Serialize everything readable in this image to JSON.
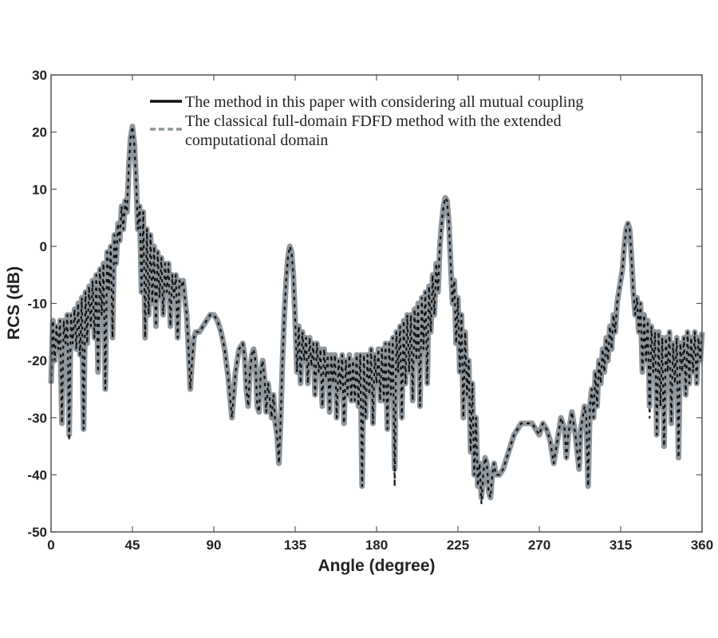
{
  "chart_data": {
    "type": "line",
    "title": "",
    "xlabel": "Angle (degree)",
    "ylabel": "RCS (dB)",
    "xlim": [
      0,
      360
    ],
    "ylim": [
      -50,
      30
    ],
    "xticks": [
      0,
      45,
      90,
      135,
      180,
      225,
      270,
      315,
      360
    ],
    "yticks": [
      30,
      20,
      10,
      0,
      -10,
      -20,
      -30,
      -40,
      -50
    ],
    "grid": false,
    "legend_position": "top-right",
    "x": [
      0,
      1,
      2,
      3,
      4,
      5,
      6,
      7,
      8,
      9,
      10,
      11,
      12,
      13,
      14,
      15,
      16,
      17,
      18,
      19,
      20,
      21,
      22,
      23,
      24,
      25,
      26,
      27,
      28,
      29,
      30,
      31,
      32,
      33,
      34,
      35,
      36,
      37,
      38,
      39,
      40,
      41,
      42,
      43,
      44,
      45,
      46,
      47,
      48,
      49,
      50,
      51,
      52,
      53,
      54,
      55,
      56,
      57,
      58,
      59,
      60,
      61,
      62,
      63,
      64,
      65,
      66,
      67,
      68,
      69,
      70,
      71,
      72,
      73,
      74,
      75,
      76,
      77,
      78,
      79,
      80,
      82,
      84,
      86,
      88,
      90,
      92,
      94,
      96,
      98,
      100,
      102,
      104,
      106,
      107,
      108,
      109,
      110,
      111,
      112,
      113,
      114,
      115,
      116,
      117,
      118,
      119,
      120,
      121,
      122,
      123,
      124,
      125,
      126,
      127,
      128,
      129,
      130,
      131,
      132,
      133,
      134,
      135,
      136,
      137,
      138,
      139,
      140,
      141,
      142,
      143,
      144,
      145,
      146,
      147,
      148,
      149,
      150,
      151,
      152,
      153,
      154,
      155,
      156,
      157,
      158,
      159,
      160,
      161,
      162,
      163,
      164,
      165,
      166,
      167,
      168,
      169,
      170,
      171,
      172,
      173,
      174,
      175,
      176,
      177,
      178,
      179,
      180,
      181,
      182,
      183,
      184,
      185,
      186,
      187,
      188,
      189,
      190,
      191,
      192,
      193,
      194,
      195,
      196,
      197,
      198,
      199,
      200,
      201,
      202,
      203,
      204,
      205,
      206,
      207,
      208,
      209,
      210,
      211,
      212,
      213,
      214,
      215,
      216,
      217,
      218,
      219,
      220,
      221,
      222,
      223,
      224,
      225,
      226,
      227,
      228,
      229,
      230,
      231,
      232,
      233,
      234,
      235,
      236,
      237,
      238,
      239,
      240,
      241,
      242,
      243,
      244,
      245,
      246,
      248,
      250,
      252,
      254,
      256,
      258,
      260,
      262,
      264,
      266,
      268,
      270,
      272,
      274,
      276,
      278,
      280,
      282,
      284,
      285,
      286,
      288,
      290,
      292,
      293,
      295,
      296,
      297,
      298,
      299,
      300,
      301,
      302,
      303,
      304,
      305,
      306,
      307,
      308,
      309,
      310,
      311,
      312,
      313,
      314,
      315,
      316,
      317,
      318,
      319,
      320,
      321,
      322,
      323,
      324,
      325,
      326,
      327,
      328,
      329,
      330,
      331,
      332,
      333,
      334,
      335,
      336,
      337,
      338,
      339,
      340,
      341,
      342,
      343,
      344,
      345,
      346,
      347,
      348,
      349,
      350,
      351,
      352,
      353,
      354,
      355,
      356,
      357,
      358,
      359,
      360
    ],
    "series": [
      {
        "name": "The method in this paper with considering all mutual coupling",
        "style": "solid",
        "color": "#111111",
        "values": [
          -24,
          -13,
          -20,
          -14,
          -18,
          -13,
          -31,
          -13,
          -17,
          -12,
          -34,
          -12,
          -17,
          -11,
          -18,
          -10,
          -19,
          -9,
          -32,
          -8,
          -17,
          -7,
          -14,
          -6,
          -16,
          -5,
          -22,
          -4,
          -12,
          -3,
          -25,
          -1,
          -8,
          0,
          -16,
          2,
          -3,
          4,
          1,
          7,
          3,
          8,
          6,
          14,
          19,
          21,
          18,
          12,
          3,
          7,
          -8,
          6,
          -16,
          3,
          -12,
          2,
          -10,
          0,
          -14,
          -1,
          -9,
          -2,
          -12,
          -3,
          -8,
          -3,
          -14,
          -5,
          -9,
          -5,
          -16,
          -6,
          -7,
          -6,
          -9,
          -12,
          -18,
          -25,
          -20,
          -16,
          -15,
          -15,
          -14,
          -13,
          -12,
          -12,
          -13,
          -15,
          -18,
          -23,
          -30,
          -22,
          -18,
          -17,
          -19,
          -25,
          -28,
          -22,
          -19,
          -18,
          -20,
          -28,
          -29,
          -22,
          -20,
          -23,
          -29,
          -24,
          -27,
          -30,
          -26,
          -31,
          -33,
          -38,
          -30,
          -20,
          -12,
          -6,
          -2,
          0,
          -1,
          -5,
          -13,
          -22,
          -14,
          -24,
          -15,
          -20,
          -16,
          -24,
          -16,
          -21,
          -17,
          -26,
          -17,
          -22,
          -18,
          -28,
          -18,
          -23,
          -19,
          -29,
          -19,
          -24,
          -19,
          -30,
          -20,
          -25,
          -19,
          -31,
          -20,
          -26,
          -19,
          -27,
          -20,
          -27,
          -19,
          -28,
          -19,
          -42,
          -19,
          -30,
          -19,
          -26,
          -18,
          -31,
          -19,
          -24,
          -18,
          -27,
          -18,
          -27,
          -17,
          -32,
          -17,
          -26,
          -16,
          -42,
          -15,
          -22,
          -14,
          -30,
          -13,
          -24,
          -12,
          -22,
          -12,
          -27,
          -11,
          -20,
          -10,
          -28,
          -9,
          -18,
          -8,
          -24,
          -7,
          -15,
          -5,
          -12,
          -3,
          -8,
          0,
          4,
          7,
          8.5,
          8,
          4,
          -3,
          -10,
          -6,
          -17,
          -9,
          -22,
          -12,
          -30,
          -15,
          -26,
          -20,
          -36,
          -24,
          -40,
          -30,
          -42,
          -38,
          -45,
          -40,
          -37,
          -38,
          -43,
          -44,
          -40,
          -38,
          -40,
          -40,
          -39,
          -37,
          -35,
          -33,
          -32,
          -31,
          -31,
          -31,
          -31,
          -32,
          -33,
          -31,
          -32,
          -34,
          -38,
          -34,
          -30,
          -32,
          -37,
          -33,
          -29,
          -33,
          -39,
          -32,
          -28,
          -30,
          -42,
          -28,
          -25,
          -30,
          -22,
          -28,
          -20,
          -24,
          -18,
          -22,
          -16,
          -20,
          -14,
          -18,
          -12,
          -15,
          -10,
          -8,
          -6,
          -4,
          0,
          3,
          4,
          3,
          -2,
          -8,
          -12,
          -9,
          -15,
          -10,
          -22,
          -12,
          -20,
          -13,
          -30,
          -14,
          -22,
          -15,
          -33,
          -15,
          -28,
          -16,
          -35,
          -16,
          -22,
          -15,
          -31,
          -17,
          -24,
          -16,
          -37,
          -17,
          -22,
          -16,
          -26,
          -15,
          -24,
          -16,
          -22,
          -15,
          -24,
          -16,
          -20,
          -15
        ]
      },
      {
        "name": "The classical full-domain FDFD method with the extended computational domain",
        "style": "dashed",
        "color": "#8e969c",
        "values": [
          -24,
          -13,
          -20,
          -14,
          -18,
          -13,
          -31,
          -13,
          -17,
          -12,
          -33,
          -12,
          -17,
          -11,
          -18,
          -10,
          -19,
          -9,
          -32,
          -8,
          -17,
          -7,
          -14,
          -6,
          -16,
          -5,
          -22,
          -4,
          -12,
          -3,
          -25,
          -1,
          -8,
          0,
          -16,
          2,
          -3,
          4,
          1,
          7,
          3,
          8,
          6,
          14,
          19,
          21,
          18,
          12,
          3,
          7,
          -8,
          6,
          -16,
          3,
          -12,
          2,
          -10,
          0,
          -14,
          -1,
          -9,
          -2,
          -12,
          -3,
          -8,
          -3,
          -14,
          -5,
          -9,
          -5,
          -16,
          -6,
          -7,
          -6,
          -9,
          -12,
          -18,
          -25,
          -20,
          -16,
          -15,
          -15,
          -14,
          -13,
          -12,
          -12,
          -13,
          -15,
          -18,
          -23,
          -30,
          -22,
          -18,
          -17,
          -19,
          -25,
          -28,
          -22,
          -19,
          -18,
          -20,
          -28,
          -29,
          -22,
          -20,
          -23,
          -29,
          -24,
          -27,
          -30,
          -26,
          -31,
          -33,
          -38,
          -30,
          -20,
          -12,
          -6,
          -2,
          0,
          -1,
          -5,
          -13,
          -22,
          -14,
          -24,
          -15,
          -20,
          -16,
          -24,
          -16,
          -21,
          -17,
          -26,
          -17,
          -22,
          -18,
          -28,
          -18,
          -23,
          -19,
          -29,
          -19,
          -24,
          -19,
          -30,
          -20,
          -25,
          -19,
          -31,
          -20,
          -26,
          -19,
          -27,
          -20,
          -27,
          -19,
          -28,
          -19,
          -42,
          -19,
          -30,
          -19,
          -26,
          -18,
          -31,
          -19,
          -24,
          -18,
          -27,
          -18,
          -27,
          -17,
          -32,
          -17,
          -26,
          -16,
          -39,
          -15,
          -22,
          -14,
          -30,
          -13,
          -24,
          -12,
          -22,
          -12,
          -27,
          -11,
          -20,
          -10,
          -28,
          -9,
          -18,
          -8,
          -24,
          -7,
          -15,
          -5,
          -12,
          -3,
          -8,
          0,
          4,
          7,
          8.5,
          8,
          4,
          -3,
          -10,
          -6,
          -17,
          -9,
          -22,
          -12,
          -30,
          -15,
          -26,
          -20,
          -36,
          -24,
          -40,
          -30,
          -42,
          -38,
          -44,
          -40,
          -37,
          -38,
          -43,
          -44,
          -40,
          -38,
          -40,
          -40,
          -39,
          -37,
          -35,
          -33,
          -32,
          -31,
          -31,
          -31,
          -31,
          -32,
          -33,
          -31,
          -32,
          -34,
          -38,
          -34,
          -30,
          -32,
          -37,
          -33,
          -29,
          -33,
          -39,
          -32,
          -28,
          -30,
          -42,
          -28,
          -25,
          -30,
          -22,
          -28,
          -20,
          -24,
          -18,
          -22,
          -16,
          -20,
          -14,
          -18,
          -12,
          -15,
          -10,
          -8,
          -6,
          -4,
          0,
          3,
          4,
          3,
          -2,
          -8,
          -12,
          -9,
          -15,
          -10,
          -22,
          -12,
          -20,
          -13,
          -28,
          -14,
          -22,
          -15,
          -33,
          -15,
          -28,
          -16,
          -35,
          -16,
          -22,
          -15,
          -31,
          -17,
          -24,
          -16,
          -37,
          -17,
          -22,
          -16,
          -26,
          -15,
          -24,
          -16,
          -22,
          -15,
          -24,
          -16,
          -20,
          -15
        ]
      }
    ],
    "legend": {
      "entry1": "The method in this paper with considering all mutual coupling",
      "entry2_line1": "The classical full-domain FDFD method with the extended",
      "entry2_line2": "computational domain"
    }
  }
}
